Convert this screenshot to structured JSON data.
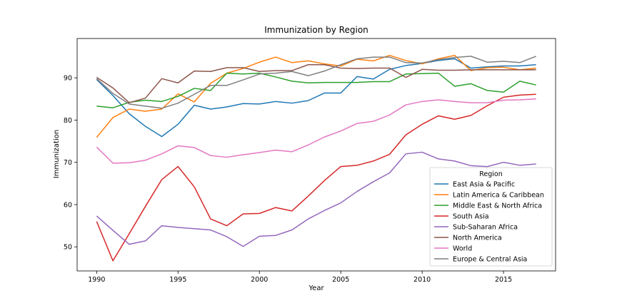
{
  "chart_data": {
    "type": "line",
    "title": "Immunization by Region",
    "xlabel": "Year",
    "ylabel": "Immunization",
    "xlim": [
      1988.8,
      2018.2
    ],
    "ylim": [
      44.3,
      99.3
    ],
    "x_ticks": [
      1990,
      1995,
      2000,
      2005,
      2010,
      2015
    ],
    "y_ticks": [
      50,
      60,
      70,
      80,
      90
    ],
    "grid": false,
    "legend": {
      "title": "Region",
      "placement": "lower-right"
    },
    "x": [
      1990,
      1991,
      1992,
      1993,
      1994,
      1995,
      1996,
      1997,
      1998,
      1999,
      2000,
      2001,
      2002,
      2003,
      2004,
      2005,
      2006,
      2007,
      2008,
      2009,
      2010,
      2011,
      2012,
      2013,
      2014,
      2015,
      2016,
      2017
    ],
    "series": [
      {
        "name": "East Asia & Pacific",
        "color": "#1f77b4",
        "values": [
          89.6,
          85.8,
          81.5,
          78.5,
          76.1,
          79.0,
          83.5,
          82.6,
          83.1,
          83.9,
          83.8,
          84.4,
          84.0,
          84.6,
          86.4,
          86.4,
          90.3,
          89.7,
          92.0,
          92.9,
          93.4,
          94.1,
          94.5,
          92.3,
          92.6,
          92.8,
          92.8,
          93.1
        ]
      },
      {
        "name": "Latin America & Caribbean",
        "color": "#ff7f0e",
        "values": [
          75.9,
          80.6,
          82.6,
          82.1,
          82.6,
          86.2,
          84.3,
          88.7,
          91.1,
          92.2,
          93.7,
          94.9,
          93.6,
          94.0,
          93.3,
          92.8,
          94.4,
          94.0,
          95.3,
          94.1,
          93.3,
          94.5,
          95.3,
          91.7,
          92.4,
          92.5,
          91.9,
          92.3
        ]
      },
      {
        "name": "Middle East & North Africa",
        "color": "#2ca02c",
        "values": [
          83.3,
          82.9,
          84.2,
          84.7,
          84.4,
          85.6,
          87.5,
          87.0,
          91.1,
          90.9,
          91.1,
          90.2,
          89.2,
          88.8,
          88.9,
          88.9,
          88.9,
          89.1,
          89.1,
          90.9,
          91.0,
          91.1,
          88.0,
          88.6,
          87.0,
          86.6,
          89.2,
          88.3
        ]
      },
      {
        "name": "South Asia",
        "color": "#d62728",
        "values": [
          56.0,
          46.7,
          53.1,
          59.6,
          65.9,
          69.0,
          64.2,
          56.6,
          55.0,
          57.8,
          57.9,
          59.3,
          58.5,
          62.0,
          65.7,
          69.0,
          69.3,
          70.3,
          71.9,
          76.5,
          79.0,
          81.0,
          80.2,
          81.1,
          83.4,
          85.4,
          85.9,
          86.1
        ]
      },
      {
        "name": "Sub-Saharan Africa",
        "color": "#9467bd",
        "values": [
          57.3,
          53.9,
          50.6,
          51.4,
          55.0,
          54.6,
          54.3,
          54.0,
          52.4,
          50.1,
          52.5,
          52.7,
          54.0,
          56.6,
          58.6,
          60.4,
          63.1,
          65.4,
          67.5,
          72.0,
          72.4,
          70.8,
          70.3,
          69.2,
          69.0,
          70.0,
          69.3,
          69.6
        ]
      },
      {
        "name": "North America",
        "color": "#8c564b",
        "values": [
          90.1,
          87.6,
          84.1,
          85.2,
          89.8,
          88.8,
          91.6,
          91.5,
          92.4,
          92.4,
          91.5,
          91.7,
          91.7,
          93.1,
          93.1,
          92.3,
          92.2,
          92.3,
          92.3,
          90.1,
          92.0,
          91.8,
          91.8,
          91.9,
          91.9,
          91.9,
          91.9,
          91.9
        ]
      },
      {
        "name": "World",
        "color": "#e377c2",
        "values": [
          73.6,
          69.8,
          69.9,
          70.5,
          72.0,
          73.9,
          73.5,
          71.6,
          71.2,
          71.8,
          72.3,
          72.9,
          72.5,
          74.1,
          76.0,
          77.4,
          79.2,
          79.7,
          81.2,
          83.6,
          84.4,
          84.8,
          84.4,
          84.1,
          84.1,
          84.7,
          84.8,
          85.0
        ]
      },
      {
        "name": "Europe & Central Asia",
        "color": "#7f7f7f",
        "values": [
          89.8,
          86.3,
          83.8,
          83.3,
          82.8,
          84.0,
          86.1,
          88.2,
          88.2,
          89.5,
          90.9,
          91.1,
          91.5,
          90.5,
          91.6,
          93.1,
          94.5,
          94.9,
          94.9,
          93.6,
          93.5,
          94.3,
          94.8,
          95.1,
          93.7,
          93.9,
          93.6,
          95.1
        ]
      }
    ]
  }
}
